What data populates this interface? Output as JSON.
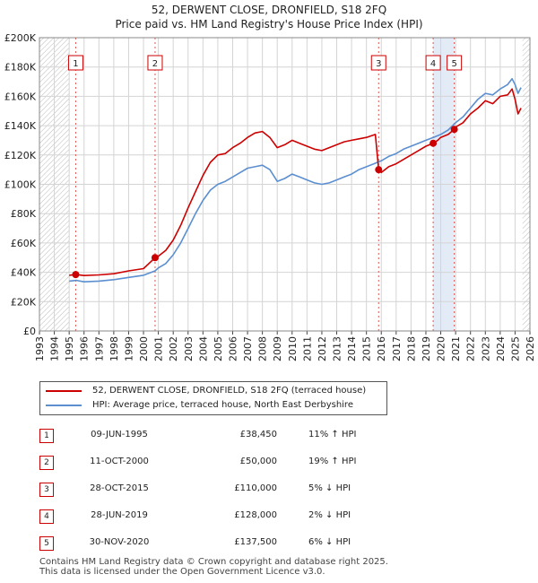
{
  "header": {
    "title": "52, DERWENT CLOSE, DRONFIELD, S18 2FQ",
    "subtitle": "Price paid vs. HM Land Registry's House Price Index (HPI)"
  },
  "chart_data": {
    "type": "line",
    "xlim": [
      1993,
      2026
    ],
    "ylim": [
      0,
      200000
    ],
    "x_ticks": [
      "1993",
      "1994",
      "1995",
      "1996",
      "1997",
      "1998",
      "1999",
      "2000",
      "2001",
      "2002",
      "2003",
      "2004",
      "2005",
      "2006",
      "2007",
      "2008",
      "2009",
      "2010",
      "2011",
      "2012",
      "2013",
      "2014",
      "2015",
      "2016",
      "2017",
      "2018",
      "2019",
      "2020",
      "2021",
      "2022",
      "2023",
      "2024",
      "2025",
      "2026"
    ],
    "y_ticks": [
      {
        "value": 0,
        "label": "£0"
      },
      {
        "value": 20000,
        "label": "£20K"
      },
      {
        "value": 40000,
        "label": "£40K"
      },
      {
        "value": 60000,
        "label": "£60K"
      },
      {
        "value": 80000,
        "label": "£80K"
      },
      {
        "value": 100000,
        "label": "£100K"
      },
      {
        "value": 120000,
        "label": "£120K"
      },
      {
        "value": 140000,
        "label": "£140K"
      },
      {
        "value": 160000,
        "label": "£160K"
      },
      {
        "value": 180000,
        "label": "£180K"
      },
      {
        "value": 200000,
        "label": "£200K"
      }
    ],
    "data_start": 1995,
    "data_end": 2025.5,
    "colors": {
      "property": "#cc0000",
      "hpi": "#5b8fd0",
      "vline": "#e05555",
      "shade": "#dce6f5",
      "grid": "#d4d4d4",
      "hatch": "#bbbbbb"
    },
    "series": [
      {
        "name": "52, DERWENT CLOSE, DRONFIELD, S18 2FQ (terraced house)",
        "color": "#cc0000",
        "points": [
          [
            1995.0,
            38000
          ],
          [
            1995.44,
            38450
          ],
          [
            1996,
            37800
          ],
          [
            1997,
            38200
          ],
          [
            1998,
            39000
          ],
          [
            1999,
            41000
          ],
          [
            2000,
            42500
          ],
          [
            2000.78,
            50000
          ],
          [
            2001,
            51000
          ],
          [
            2001.5,
            55000
          ],
          [
            2002,
            62000
          ],
          [
            2002.5,
            72000
          ],
          [
            2003,
            84000
          ],
          [
            2003.5,
            95000
          ],
          [
            2004,
            106000
          ],
          [
            2004.5,
            115000
          ],
          [
            2005,
            120000
          ],
          [
            2005.5,
            121000
          ],
          [
            2006,
            125000
          ],
          [
            2006.5,
            128000
          ],
          [
            2007,
            132000
          ],
          [
            2007.5,
            135000
          ],
          [
            2008,
            136000
          ],
          [
            2008.5,
            132000
          ],
          [
            2009,
            125000
          ],
          [
            2009.5,
            127000
          ],
          [
            2010,
            130000
          ],
          [
            2010.5,
            128000
          ],
          [
            2011,
            126000
          ],
          [
            2011.5,
            124000
          ],
          [
            2012,
            123000
          ],
          [
            2012.5,
            125000
          ],
          [
            2013,
            127000
          ],
          [
            2013.5,
            129000
          ],
          [
            2014,
            130000
          ],
          [
            2014.5,
            131000
          ],
          [
            2015,
            132000
          ],
          [
            2015.6,
            134000
          ],
          [
            2015.82,
            110000
          ],
          [
            2016,
            108000
          ],
          [
            2016.5,
            112000
          ],
          [
            2017,
            114000
          ],
          [
            2017.5,
            117000
          ],
          [
            2018,
            120000
          ],
          [
            2018.5,
            123000
          ],
          [
            2019,
            126000
          ],
          [
            2019.49,
            128000
          ],
          [
            2019.8,
            130000
          ],
          [
            2020,
            132000
          ],
          [
            2020.5,
            134000
          ],
          [
            2020.91,
            137500
          ],
          [
            2021,
            139000
          ],
          [
            2021.5,
            142000
          ],
          [
            2022,
            148000
          ],
          [
            2022.5,
            152000
          ],
          [
            2023,
            157000
          ],
          [
            2023.5,
            155000
          ],
          [
            2024,
            160000
          ],
          [
            2024.5,
            161000
          ],
          [
            2024.8,
            165000
          ],
          [
            2025.0,
            158000
          ],
          [
            2025.2,
            148000
          ],
          [
            2025.4,
            152000
          ]
        ]
      },
      {
        "name": "HPI: Average price, terraced house, North East Derbyshire",
        "color": "#5b8fd0",
        "points": [
          [
            1995.0,
            34000
          ],
          [
            1995.5,
            34500
          ],
          [
            1996,
            33500
          ],
          [
            1997,
            34000
          ],
          [
            1998,
            35000
          ],
          [
            1999,
            36500
          ],
          [
            2000,
            38000
          ],
          [
            2000.78,
            41000
          ],
          [
            2001,
            43000
          ],
          [
            2001.5,
            46000
          ],
          [
            2002,
            52000
          ],
          [
            2002.5,
            60000
          ],
          [
            2003,
            70000
          ],
          [
            2003.5,
            80000
          ],
          [
            2004,
            89000
          ],
          [
            2004.5,
            96000
          ],
          [
            2005,
            100000
          ],
          [
            2005.5,
            102000
          ],
          [
            2006,
            105000
          ],
          [
            2006.5,
            108000
          ],
          [
            2007,
            111000
          ],
          [
            2007.5,
            112000
          ],
          [
            2008,
            113000
          ],
          [
            2008.5,
            110000
          ],
          [
            2009,
            102000
          ],
          [
            2009.5,
            104000
          ],
          [
            2010,
            107000
          ],
          [
            2010.5,
            105000
          ],
          [
            2011,
            103000
          ],
          [
            2011.5,
            101000
          ],
          [
            2012,
            100000
          ],
          [
            2012.5,
            101000
          ],
          [
            2013,
            103000
          ],
          [
            2013.5,
            105000
          ],
          [
            2014,
            107000
          ],
          [
            2014.5,
            110000
          ],
          [
            2015,
            112000
          ],
          [
            2015.5,
            114000
          ],
          [
            2016,
            116000
          ],
          [
            2016.5,
            119000
          ],
          [
            2017,
            121000
          ],
          [
            2017.5,
            124000
          ],
          [
            2018,
            126000
          ],
          [
            2018.5,
            128000
          ],
          [
            2019,
            130000
          ],
          [
            2019.5,
            132000
          ],
          [
            2020,
            134000
          ],
          [
            2020.5,
            137000
          ],
          [
            2021,
            142000
          ],
          [
            2021.5,
            146000
          ],
          [
            2022,
            152000
          ],
          [
            2022.5,
            158000
          ],
          [
            2023,
            162000
          ],
          [
            2023.5,
            161000
          ],
          [
            2024,
            165000
          ],
          [
            2024.5,
            168000
          ],
          [
            2024.8,
            172000
          ],
          [
            2025.0,
            168000
          ],
          [
            2025.2,
            162000
          ],
          [
            2025.4,
            166000
          ]
        ]
      }
    ],
    "sales": [
      {
        "id": "1",
        "x": 1995.44,
        "price": 38450
      },
      {
        "id": "2",
        "x": 2000.78,
        "price": 50000
      },
      {
        "id": "3",
        "x": 2015.82,
        "price": 110000
      },
      {
        "id": "4",
        "x": 2019.49,
        "price": 128000
      },
      {
        "id": "5",
        "x": 2020.91,
        "price": 137500
      }
    ]
  },
  "legend": {
    "items": [
      {
        "label": "52, DERWENT CLOSE, DRONFIELD, S18 2FQ (terraced house)",
        "color": "#cc0000"
      },
      {
        "label": "HPI: Average price, terraced house, North East Derbyshire",
        "color": "#5b8fd0"
      }
    ]
  },
  "transactions": [
    {
      "num": "1",
      "date": "09-JUN-1995",
      "price": "£38,450",
      "hpi": "11% ↑ HPI"
    },
    {
      "num": "2",
      "date": "11-OCT-2000",
      "price": "£50,000",
      "hpi": "19% ↑ HPI"
    },
    {
      "num": "3",
      "date": "28-OCT-2015",
      "price": "£110,000",
      "hpi": "5% ↓ HPI"
    },
    {
      "num": "4",
      "date": "28-JUN-2019",
      "price": "£128,000",
      "hpi": "2% ↓ HPI"
    },
    {
      "num": "5",
      "date": "30-NOV-2020",
      "price": "£137,500",
      "hpi": "6% ↓ HPI"
    }
  ],
  "footer": {
    "line1": "Contains HM Land Registry data © Crown copyright and database right 2025.",
    "line2": "This data is licensed under the Open Government Licence v3.0."
  }
}
